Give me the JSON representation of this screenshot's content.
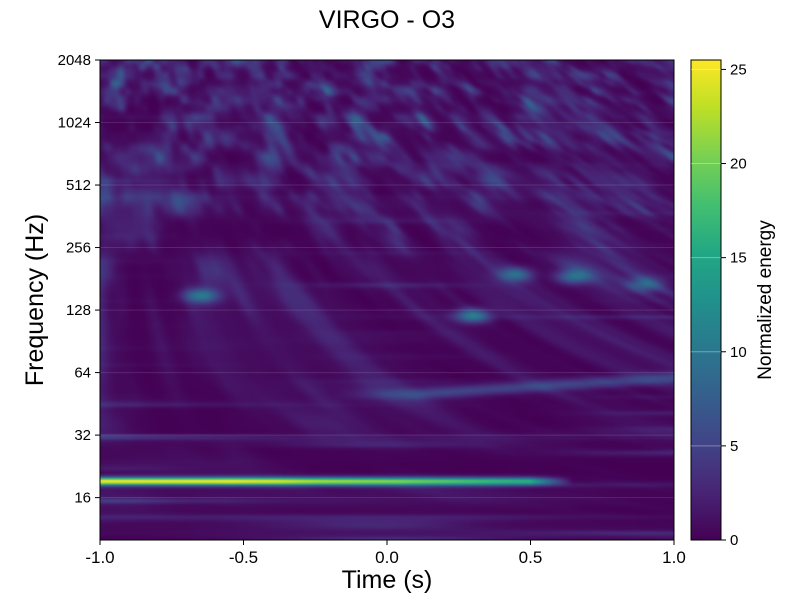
{
  "chart_data": {
    "type": "heatmap",
    "title": "VIRGO - O3",
    "xlabel": "Time (s)",
    "ylabel": "Frequency (Hz)",
    "xlim": [
      -1.0,
      1.0
    ],
    "ylim": [
      10,
      2048
    ],
    "yscale": "log2",
    "x_ticks": [
      "-1.0",
      "-0.5",
      "0.0",
      "0.5",
      "1.0"
    ],
    "y_ticks": [
      16,
      32,
      64,
      128,
      256,
      512,
      1024,
      2048
    ],
    "colorbar": {
      "label": "Normalized energy",
      "colormap": "viridis",
      "range": [
        0,
        25.5
      ],
      "ticks": [
        0,
        5,
        10,
        15,
        20,
        25
      ]
    },
    "grid": true,
    "features": [
      {
        "name": "bright-line",
        "t_start": -1.0,
        "t_end": 0.6,
        "freq": 19,
        "peak_energy": 25
      },
      {
        "name": "faint-track",
        "t_start": 0.1,
        "t_end": 1.0,
        "freq_start": 50,
        "freq_end": 60,
        "peak_energy": 8
      },
      {
        "name": "blob-1",
        "t": -0.65,
        "freq": 150,
        "energy": 9
      },
      {
        "name": "blob-2",
        "t": 0.3,
        "freq": 120,
        "energy": 10
      },
      {
        "name": "blob-3",
        "t": 0.45,
        "freq": 190,
        "energy": 8
      },
      {
        "name": "blob-4",
        "t": 0.65,
        "freq": 185,
        "energy": 8
      },
      {
        "name": "blob-5",
        "t": 0.9,
        "freq": 170,
        "energy": 7
      }
    ]
  }
}
